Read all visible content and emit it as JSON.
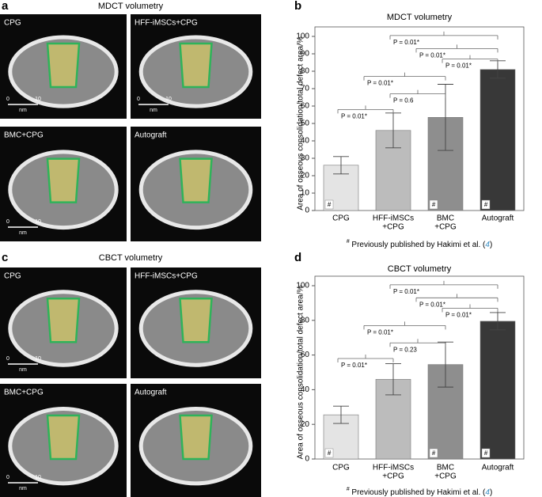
{
  "panels": {
    "a": {
      "letter": "a",
      "title": "MDCT volumetry",
      "images": [
        {
          "label": "CPG",
          "scale": {
            "start": "0",
            "end": "10",
            "unit": "nm"
          }
        },
        {
          "label": "HFF-iMSCs+CPG",
          "scale": {
            "start": "0",
            "end": "10",
            "unit": "nm"
          }
        },
        {
          "label": "BMC+CPG",
          "scale": {
            "start": "0",
            "end": "10",
            "unit": "nm"
          }
        },
        {
          "label": "Autograft"
        }
      ]
    },
    "b": {
      "letter": "b"
    },
    "c": {
      "letter": "c",
      "title": "CBCT volumetry",
      "images": [
        {
          "label": "CPG",
          "scale": {
            "start": "0",
            "end": "10",
            "unit": "nm"
          }
        },
        {
          "label": "HFF-iMSCs+CPG"
        },
        {
          "label": "BMC+CPG",
          "scale": {
            "start": "0",
            "end": "10",
            "unit": "nm"
          }
        },
        {
          "label": "Autograft"
        }
      ]
    },
    "d": {
      "letter": "d"
    }
  },
  "chart_data": [
    {
      "type": "bar",
      "title": "MDCT volumetry",
      "y_label": "Area of osseous consolidation/total defect area/%",
      "categories": [
        [
          "CPG"
        ],
        [
          "HFF-iMSCs",
          "+CPG"
        ],
        [
          "BMC",
          "+CPG"
        ],
        [
          "Autograft"
        ]
      ],
      "values": [
        26,
        46,
        53.5,
        81
      ],
      "errors": [
        5,
        10,
        19,
        5
      ],
      "colors": [
        "#e4e4e4",
        "#bcbcbc",
        "#8e8e8e",
        "#383838"
      ],
      "bar_labels": [
        "#",
        null,
        "#",
        "#"
      ],
      "ylim": [
        0,
        100
      ],
      "yticks": [
        0,
        10,
        20,
        30,
        40,
        50,
        60,
        70,
        80,
        90,
        100
      ],
      "annotations": [
        "P = 0.01*",
        "P = 0.6",
        "P = 0.01*",
        "P = 0.01*",
        "P = 0.01*",
        "P = 0.01*"
      ],
      "footnote": {
        "mark": "#",
        "text": " Previously published by Hakimi et al. (",
        "ref": "4",
        "end": ")"
      }
    },
    {
      "type": "bar",
      "title": "CBCT volumetry",
      "y_label": "Area of osseous consolidation/total defect area/%",
      "categories": [
        [
          "CPG"
        ],
        [
          "HFF-iMSCs",
          "+CPG"
        ],
        [
          "BMC",
          "+CPG"
        ],
        [
          "Autograft"
        ]
      ],
      "values": [
        25.5,
        46,
        54.5,
        79.5
      ],
      "errors": [
        5,
        9,
        13,
        5
      ],
      "colors": [
        "#e4e4e4",
        "#bcbcbc",
        "#8e8e8e",
        "#383838"
      ],
      "bar_labels": [
        "#",
        null,
        "#",
        "#"
      ],
      "ylim": [
        0,
        100
      ],
      "yticks": [
        0,
        20,
        40,
        60,
        80,
        100
      ],
      "annotations": [
        "P = 0.01*",
        "P = 0.23",
        "P = 0.01*",
        "P = 0.01*",
        "P = 0.01*",
        "P = 0.01*"
      ],
      "footnote": {
        "mark": "#",
        "text": " Previously published by Hakimi et al. (",
        "ref": "4",
        "end": ")"
      }
    }
  ]
}
